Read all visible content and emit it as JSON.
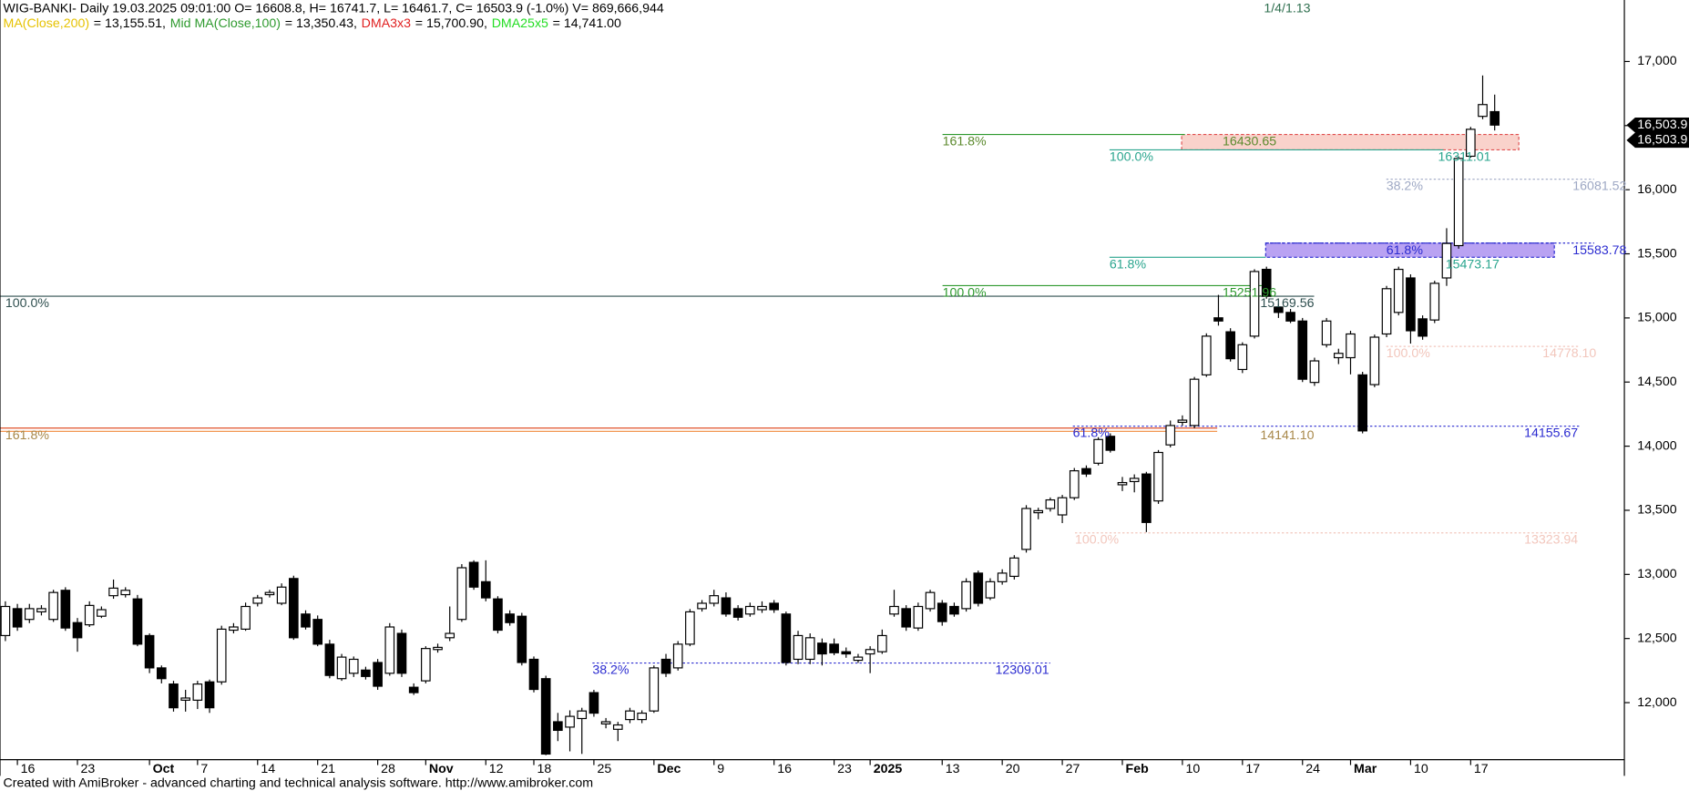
{
  "chart_data": {
    "type": "candlestick",
    "title": "WIG-BANKI- Daily 19.03.2025 09:01:00 O= 16608.8, H= 16741.7, L= 16461.7, C= 16503.9 (-1.0%) V= 869,666,944",
    "indicators": [
      {
        "name": "MA(Close,200)",
        "value": "= 13,155.51,",
        "color": "#e6c200"
      },
      {
        "name": "Mid MA(Close,100)",
        "value": "= 13,350.43,",
        "color": "#2e9a2e"
      },
      {
        "name": "DMA3x3",
        "value": "= 15,700.90,",
        "color": "#e02020"
      },
      {
        "name": "DMA25x5",
        "value": "= 14,741.00",
        "color": "#22dd22"
      }
    ],
    "top_label": "1/4/1.13",
    "footer": "Created with AmiBroker - advanced charting and technical analysis software. http://www.amibroker.com",
    "up_color": "#ffffff",
    "down_color": "#000000",
    "ylim": [
      11555,
      17479
    ],
    "yticks": [
      {
        "value": 12000,
        "label": "12,000"
      },
      {
        "value": 12500,
        "label": "12,500"
      },
      {
        "value": 13000,
        "label": "13,000"
      },
      {
        "value": 13500,
        "label": "13,500"
      },
      {
        "value": 14000,
        "label": "14,000"
      },
      {
        "value": 14500,
        "label": "14,500"
      },
      {
        "value": 15000,
        "label": "15,000"
      },
      {
        "value": 15500,
        "label": "15,500"
      },
      {
        "value": 16000,
        "label": "16,000"
      },
      {
        "value": 16500,
        "label": "16,500"
      },
      {
        "value": 17000,
        "label": "17,000"
      }
    ],
    "price_markers": [
      {
        "value": 16503.9,
        "label": "16,503.9"
      },
      {
        "value": 16503.9,
        "label": "16,503.9"
      }
    ],
    "levels": [
      {
        "value": 15169.56,
        "color": "#2f4f4f",
        "style": "solid",
        "labels": [
          "100.0%",
          "15169.56"
        ]
      },
      {
        "value": 15251.96,
        "color": "#2e9a2e",
        "style": "solid",
        "labels": [
          "100.0%",
          "15251.96"
        ]
      },
      {
        "value": 14141.1,
        "color": "#e0502a",
        "text_color": "#a8884a",
        "style": "double",
        "labels": [
          "161.8%",
          "14141.10"
        ]
      },
      {
        "value": 14155.67,
        "color": "#2b2bd0",
        "style": "dotted",
        "labels": [
          "61.8%",
          "14155.67"
        ]
      },
      {
        "value": 12309.01,
        "color": "#2b2bd0",
        "style": "dotted",
        "labels": [
          "38.2%",
          "12309.01"
        ]
      },
      {
        "value": 13323.94,
        "color": "#f2c6bc",
        "style": "dotted",
        "labels": [
          "100.0%",
          "13323.94"
        ]
      },
      {
        "value": 14778.1,
        "color": "#f2c6bc",
        "style": "dotted",
        "labels": [
          "100.0%",
          "14778.10"
        ]
      },
      {
        "value": 16081.52,
        "color": "#9ea8c4",
        "style": "dotted",
        "labels": [
          "38.2%",
          "16081.52"
        ]
      },
      {
        "value": 16430.65,
        "color": "#2e9a2e",
        "text_color": "#5c8a2e",
        "style": "solid",
        "labels": [
          "161.8%",
          "16430.65"
        ]
      },
      {
        "value": 16311.01,
        "color": "#2aa58e",
        "style": "solid",
        "labels": [
          "100.0%",
          "16311.01"
        ]
      },
      {
        "value": 15473.17,
        "color": "#2aa58e",
        "style": "solid",
        "labels": [
          "61.8%",
          "15473.17"
        ]
      },
      {
        "value": 15583.78,
        "color": "#2b2bd0",
        "style": "dotted",
        "labels": [
          "61.8%",
          "15583.78"
        ]
      }
    ],
    "categories": [
      null,
      "16",
      null,
      null,
      null,
      null,
      "23",
      null,
      null,
      null,
      null,
      null,
      "Oct",
      null,
      null,
      null,
      "7",
      null,
      null,
      null,
      null,
      "14",
      null,
      null,
      null,
      null,
      "21",
      null,
      null,
      null,
      null,
      "28",
      null,
      null,
      null,
      "Nov",
      null,
      null,
      null,
      null,
      "12",
      null,
      null,
      null,
      "18",
      null,
      null,
      null,
      null,
      "25",
      null,
      null,
      null,
      null,
      "Dec",
      null,
      null,
      null,
      null,
      "9",
      null,
      null,
      null,
      null,
      "16",
      null,
      null,
      null,
      null,
      "23",
      null,
      null,
      "2025",
      null,
      null,
      null,
      null,
      null,
      "13",
      null,
      null,
      null,
      null,
      "20",
      null,
      null,
      null,
      null,
      "27",
      null,
      null,
      null,
      null,
      "Feb",
      null,
      null,
      null,
      null,
      "10",
      null,
      null,
      null,
      null,
      "17",
      null,
      null,
      null,
      null,
      "24",
      null,
      null,
      null,
      "Mar",
      null,
      null,
      null,
      null,
      "10",
      null,
      null,
      null,
      null,
      "17",
      null,
      null
    ],
    "ohlc": [
      [
        12523,
        12790,
        12480,
        12750
      ],
      [
        12733,
        12770,
        12560,
        12590
      ],
      [
        12649,
        12770,
        12620,
        12733
      ],
      [
        12708,
        12760,
        12680,
        12733
      ],
      [
        12649,
        12880,
        12630,
        12859
      ],
      [
        12876,
        12900,
        12560,
        12582
      ],
      [
        12624,
        12660,
        12397,
        12506
      ],
      [
        12607,
        12790,
        12590,
        12758
      ],
      [
        12674,
        12750,
        12660,
        12725
      ],
      [
        12834,
        12960,
        12810,
        12893
      ],
      [
        12842,
        12900,
        12820,
        12876
      ],
      [
        12809,
        12840,
        12440,
        12456
      ],
      [
        12523,
        12540,
        12230,
        12271
      ],
      [
        12271,
        12290,
        12150,
        12187
      ],
      [
        12145,
        12170,
        11930,
        11960
      ],
      [
        12019,
        12100,
        11930,
        12036
      ],
      [
        12019,
        12170,
        11950,
        12145
      ],
      [
        12162,
        12180,
        11920,
        11960
      ],
      [
        12162,
        12600,
        12140,
        12573
      ],
      [
        12565,
        12620,
        12540,
        12590
      ],
      [
        12573,
        12780,
        12560,
        12750
      ],
      [
        12775,
        12840,
        12750,
        12817
      ],
      [
        12842,
        12880,
        12820,
        12859
      ],
      [
        12775,
        12930,
        12760,
        12901
      ],
      [
        12968,
        12990,
        12490,
        12506
      ],
      [
        12691,
        12720,
        12570,
        12590
      ],
      [
        12649,
        12680,
        12440,
        12456
      ],
      [
        12456,
        12490,
        12190,
        12212
      ],
      [
        12187,
        12380,
        12170,
        12355
      ],
      [
        12229,
        12360,
        12200,
        12338
      ],
      [
        12254,
        12280,
        12180,
        12204
      ],
      [
        12313,
        12340,
        12100,
        12128
      ],
      [
        12229,
        12620,
        12210,
        12590
      ],
      [
        12540,
        12570,
        12200,
        12229
      ],
      [
        12120,
        12150,
        12060,
        12078
      ],
      [
        12170,
        12440,
        12150,
        12422
      ],
      [
        12414,
        12460,
        12390,
        12431
      ],
      [
        12506,
        12750,
        12480,
        12540
      ],
      [
        12649,
        13080,
        12630,
        13052
      ],
      [
        13094,
        13110,
        12880,
        12901
      ],
      [
        12943,
        13110,
        12790,
        12817
      ],
      [
        12809,
        12830,
        12540,
        12565
      ],
      [
        12691,
        12720,
        12600,
        12624
      ],
      [
        12674,
        12700,
        12290,
        12313
      ],
      [
        12338,
        12360,
        12080,
        12103
      ],
      [
        12187,
        12210,
        11590,
        11599
      ],
      [
        11851,
        11920,
        11700,
        11784
      ],
      [
        11809,
        11940,
        11620,
        11893
      ],
      [
        11876,
        11960,
        11600,
        11935
      ],
      [
        12078,
        12100,
        11890,
        11918
      ],
      [
        11834,
        11880,
        11800,
        11851
      ],
      [
        11792,
        11850,
        11700,
        11826
      ],
      [
        11868,
        11960,
        11840,
        11935
      ],
      [
        11868,
        11940,
        11840,
        11918
      ],
      [
        11935,
        12290,
        11920,
        12271
      ],
      [
        12338,
        12380,
        12200,
        12229
      ],
      [
        12271,
        12480,
        12250,
        12456
      ],
      [
        12456,
        12730,
        12440,
        12708
      ],
      [
        12733,
        12800,
        12710,
        12775
      ],
      [
        12775,
        12880,
        12750,
        12834
      ],
      [
        12817,
        12860,
        12670,
        12691
      ],
      [
        12733,
        12760,
        12640,
        12666
      ],
      [
        12691,
        12780,
        12670,
        12750
      ],
      [
        12725,
        12790,
        12700,
        12750
      ],
      [
        12775,
        12800,
        12700,
        12725
      ],
      [
        12691,
        12710,
        12290,
        12313
      ],
      [
        12338,
        12560,
        12300,
        12523
      ],
      [
        12338,
        12540,
        12300,
        12506
      ],
      [
        12464,
        12500,
        12290,
        12380
      ],
      [
        12456,
        12500,
        12370,
        12389
      ],
      [
        12397,
        12430,
        12350,
        12380
      ],
      [
        12330,
        12380,
        12310,
        12355
      ],
      [
        12380,
        12440,
        12230,
        12414
      ],
      [
        12397,
        12570,
        12380,
        12523
      ],
      [
        12691,
        12880,
        12670,
        12750
      ],
      [
        12733,
        12760,
        12560,
        12590
      ],
      [
        12582,
        12780,
        12560,
        12750
      ],
      [
        12733,
        12880,
        12710,
        12859
      ],
      [
        12775,
        12800,
        12600,
        12632
      ],
      [
        12750,
        12780,
        12670,
        12691
      ],
      [
        12733,
        12970,
        12710,
        12943
      ],
      [
        13010,
        13030,
        12750,
        12775
      ],
      [
        12817,
        12970,
        12800,
        12943
      ],
      [
        12943,
        13040,
        12920,
        13010
      ],
      [
        12985,
        13150,
        12960,
        13128
      ],
      [
        13195,
        13540,
        13170,
        13514
      ],
      [
        13481,
        13520,
        13430,
        13497
      ],
      [
        13514,
        13600,
        13490,
        13581
      ],
      [
        13464,
        13620,
        13400,
        13598
      ],
      [
        13598,
        13830,
        13580,
        13808
      ],
      [
        13825,
        13850,
        13760,
        13783
      ],
      [
        13867,
        14070,
        13850,
        14052
      ],
      [
        14077,
        14100,
        13950,
        13968
      ],
      [
        13699,
        13760,
        13650,
        13716
      ],
      [
        13724,
        13780,
        13640,
        13749
      ],
      [
        13783,
        13800,
        13330,
        13405
      ],
      [
        13573,
        13970,
        13550,
        13951
      ],
      [
        14010,
        14200,
        13990,
        14161
      ],
      [
        14186,
        14240,
        14160,
        14203
      ],
      [
        14161,
        14540,
        14140,
        14522
      ],
      [
        14556,
        14880,
        14540,
        14858
      ],
      [
        15001,
        15180,
        14940,
        14976
      ],
      [
        14892,
        14920,
        14660,
        14682
      ],
      [
        14598,
        14810,
        14570,
        14791
      ],
      [
        14858,
        15380,
        14840,
        15362
      ],
      [
        15379,
        15400,
        15150,
        15169
      ],
      [
        15085,
        15110,
        15000,
        15043
      ],
      [
        15043,
        15070,
        14960,
        14976
      ],
      [
        14976,
        15000,
        14500,
        14522
      ],
      [
        14497,
        14690,
        14470,
        14665
      ],
      [
        14791,
        15000,
        14770,
        14976
      ],
      [
        14690,
        14760,
        14640,
        14724
      ],
      [
        14690,
        14900,
        14560,
        14875
      ],
      [
        14556,
        14580,
        14100,
        14119
      ],
      [
        14480,
        14870,
        14460,
        14850
      ],
      [
        14875,
        15250,
        14850,
        15228
      ],
      [
        15043,
        15400,
        15020,
        15379
      ],
      [
        15312,
        15340,
        14800,
        14900
      ],
      [
        14993,
        15020,
        14830,
        14858
      ],
      [
        14984,
        15290,
        14960,
        15270
      ],
      [
        15312,
        15700,
        15250,
        15581
      ],
      [
        15564,
        16260,
        15540,
        16244
      ],
      [
        16261,
        16490,
        16250,
        16471
      ],
      [
        16572,
        16891,
        16550,
        16664
      ],
      [
        16608.8,
        16741.7,
        16461.7,
        16503.9
      ]
    ]
  }
}
